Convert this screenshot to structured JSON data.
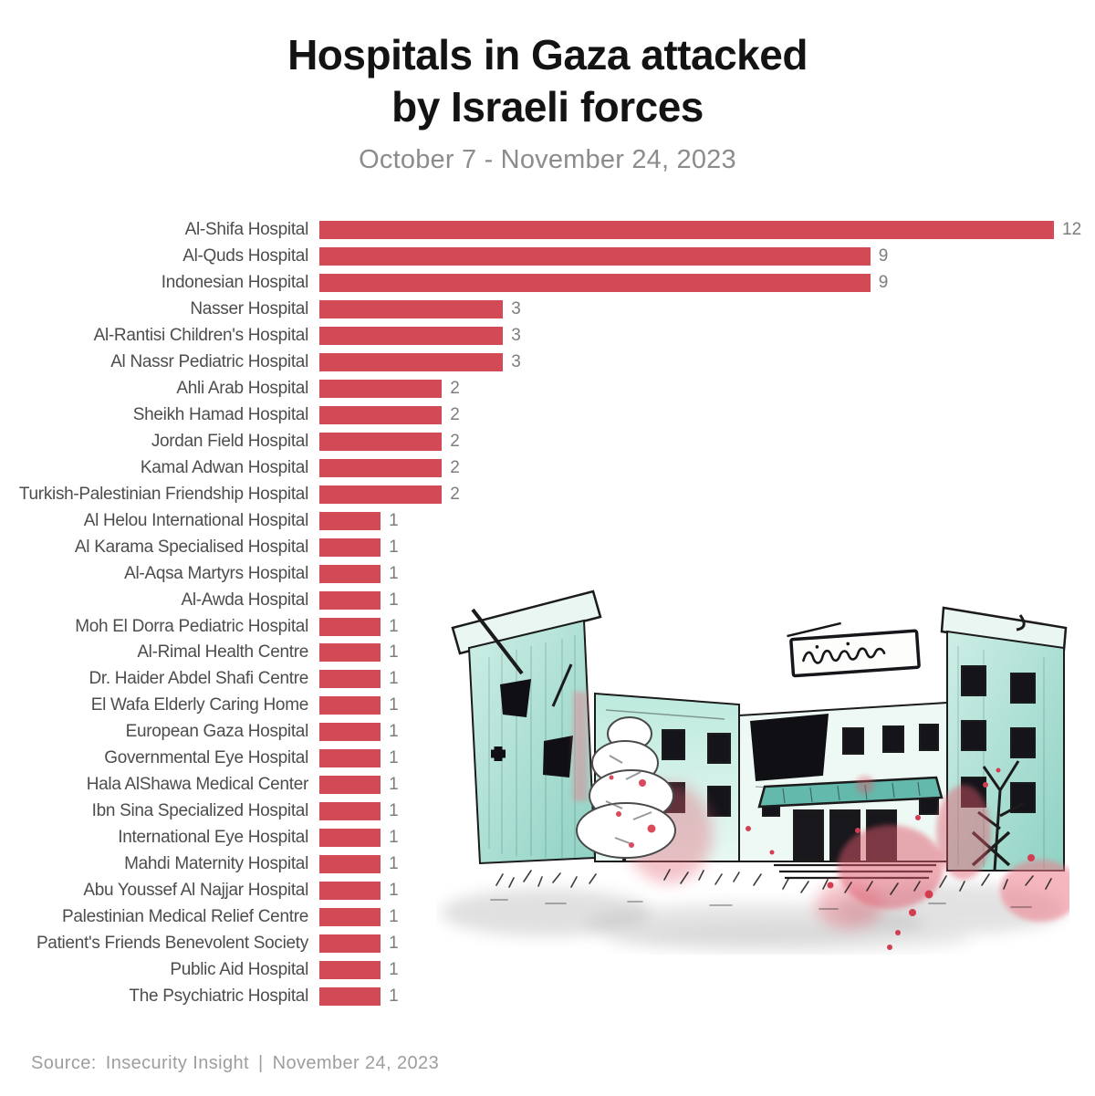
{
  "header": {
    "title_line1": "Hospitals in Gaza attacked",
    "title_line2": "by Israeli forces",
    "subtitle": "October 7 - November 24, 2023"
  },
  "chart_data": {
    "type": "bar",
    "orientation": "horizontal",
    "title": "Hospitals in Gaza attacked by Israeli forces",
    "subtitle": "October 7 - November 24, 2023",
    "xlabel": "",
    "ylabel": "",
    "xlim": [
      0,
      12
    ],
    "grid": false,
    "value_labels": "end-of-bar",
    "bar_color": "#d14a55",
    "label_color": "#4d4d4d",
    "value_color": "#7d7d7d",
    "categories": [
      "Al-Shifa Hospital",
      "Al-Quds Hospital",
      "Indonesian Hospital",
      "Nasser Hospital",
      "Al-Rantisi Children's Hospital",
      "Al Nassr Pediatric Hospital",
      "Ahli Arab Hospital",
      "Sheikh Hamad Hospital",
      "Jordan Field Hospital",
      "Kamal Adwan Hospital",
      "Turkish-Palestinian Friendship Hospital",
      "Al Helou International Hospital",
      "Al Karama Specialised Hospital",
      "Al-Aqsa Martyrs Hospital",
      "Al-Awda Hospital",
      "Moh El Dorra Pediatric Hospital",
      "Al-Rimal Health Centre",
      "Dr. Haider Abdel Shafi Centre",
      "El Wafa Elderly Caring Home",
      "European Gaza Hospital",
      "Governmental Eye Hospital",
      "Hala AlShawa Medical Center",
      "Ibn Sina Specialized Hospital",
      "International Eye Hospital",
      "Mahdi Maternity Hospital",
      "Abu Youssef Al Najjar Hospital",
      "Palestinian Medical Relief Centre",
      "Patient's Friends Benevolent Society",
      "Public Aid Hospital",
      "The Psychiatric Hospital"
    ],
    "values": [
      12,
      9,
      9,
      3,
      3,
      3,
      2,
      2,
      2,
      2,
      2,
      1,
      1,
      1,
      1,
      1,
      1,
      1,
      1,
      1,
      1,
      1,
      1,
      1,
      1,
      1,
      1,
      1,
      1,
      1
    ]
  },
  "illustration": {
    "alt": "Ink and watercolor illustration of a destroyed hospital building with blood splatters",
    "colors": {
      "mint": "#9ed9cc",
      "mint_light": "#d2efe8",
      "ink": "#1b1b1b",
      "blood_red": "#dd4f62",
      "wash_gray": "#9a9a9a"
    }
  },
  "footer": {
    "source_label": "Source:",
    "source_name": "Insecurity Insight",
    "separator": "|",
    "date": "November 24, 2023"
  }
}
